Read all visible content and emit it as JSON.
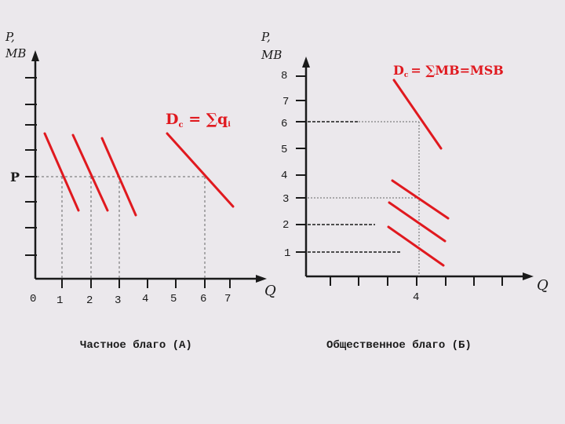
{
  "left_panel": {
    "y_axis_label_line1": "P,",
    "y_axis_label_line2": "MB",
    "x_axis_label": "Q",
    "price_label": "P",
    "origin_label": "0",
    "x_ticks": [
      "1",
      "2",
      "3",
      "4",
      "5",
      "6",
      "7"
    ],
    "demand_label": "D",
    "demand_sub": "c",
    "demand_formula": " = ∑q",
    "demand_formula_sub": "i",
    "caption": "Частное благо (А)"
  },
  "right_panel": {
    "y_axis_label_line1": "P,",
    "y_axis_label_line2": "MB",
    "x_axis_label": "Q",
    "y_ticks": [
      "8",
      "7",
      "6",
      "5",
      "4",
      "3",
      "2",
      "1"
    ],
    "x_tick_label": "4",
    "demand_label": "D",
    "demand_sub": "c",
    "demand_formula": "= ∑MB=MSB",
    "caption": "Общественное благо (Б)"
  },
  "colors": {
    "background": "#ebe8ec",
    "axis": "#1a1a1a",
    "curve": "#e0191f",
    "dashed": "#666666"
  }
}
